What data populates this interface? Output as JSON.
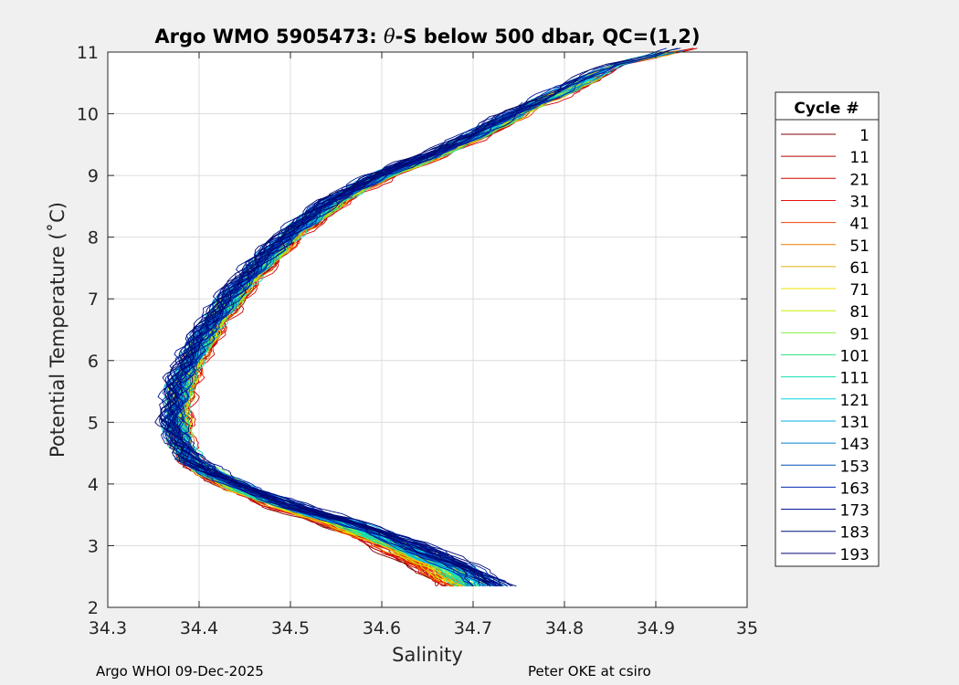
{
  "chart_data": {
    "type": "line",
    "title_prefix": "Argo WMO 5905473: ",
    "title_theta": "θ",
    "title_suffix": "-S below 500 dbar,  QC=(1,2)",
    "xlabel": "Salinity",
    "ylabel": "Potential Temperature (˚C)",
    "xlim": [
      34.3,
      35
    ],
    "ylim": [
      2,
      11
    ],
    "xticks": [
      "34.3",
      "34.4",
      "34.5",
      "34.6",
      "34.7",
      "34.8",
      "34.9",
      "35"
    ],
    "yticks": [
      "2",
      "3",
      "4",
      "5",
      "6",
      "7",
      "8",
      "9",
      "10",
      "11"
    ],
    "grid": true,
    "legend_title": "Cycle #",
    "legend_position": "outside-right",
    "series": [
      {
        "name": "1",
        "color": "#800000"
      },
      {
        "name": "11",
        "color": "#b40000"
      },
      {
        "name": "21",
        "color": "#d40000"
      },
      {
        "name": "31",
        "color": "#e81010"
      },
      {
        "name": "41",
        "color": "#f04000"
      },
      {
        "name": "51",
        "color": "#f07800"
      },
      {
        "name": "61",
        "color": "#e8b000"
      },
      {
        "name": "71",
        "color": "#f0e000"
      },
      {
        "name": "81",
        "color": "#c8f000"
      },
      {
        "name": "91",
        "color": "#80f040"
      },
      {
        "name": "101",
        "color": "#30e880"
      },
      {
        "name": "111",
        "color": "#10e0b0"
      },
      {
        "name": "121",
        "color": "#00d8e0"
      },
      {
        "name": "131",
        "color": "#00b0e0"
      },
      {
        "name": "143",
        "color": "#0080d0"
      },
      {
        "name": "153",
        "color": "#0050c0"
      },
      {
        "name": "163",
        "color": "#0028b0"
      },
      {
        "name": "173",
        "color": "#001898"
      },
      {
        "name": "183",
        "color": "#001080"
      },
      {
        "name": "193",
        "color": "#000870"
      }
    ],
    "profile_shape": [
      [
        34.94,
        11.1
      ],
      [
        34.86,
        10.8
      ],
      [
        34.81,
        10.45
      ],
      [
        34.76,
        10.1
      ],
      [
        34.71,
        9.7
      ],
      [
        34.66,
        9.35
      ],
      [
        34.6,
        9.0
      ],
      [
        34.55,
        8.6
      ],
      [
        34.505,
        8.1
      ],
      [
        34.47,
        7.6
      ],
      [
        34.44,
        7.1
      ],
      [
        34.415,
        6.6
      ],
      [
        34.395,
        6.1
      ],
      [
        34.38,
        5.6
      ],
      [
        34.375,
        5.1
      ],
      [
        34.378,
        4.7
      ],
      [
        34.39,
        4.4
      ],
      [
        34.415,
        4.15
      ],
      [
        34.45,
        3.9
      ],
      [
        34.5,
        3.62
      ],
      [
        34.56,
        3.35
      ],
      [
        34.62,
        3.0
      ],
      [
        34.67,
        2.65
      ],
      [
        34.705,
        2.3
      ]
    ]
  },
  "footer": {
    "left": "Argo WHOI 09-Dec-2025",
    "right": "Peter OKE at csiro"
  }
}
